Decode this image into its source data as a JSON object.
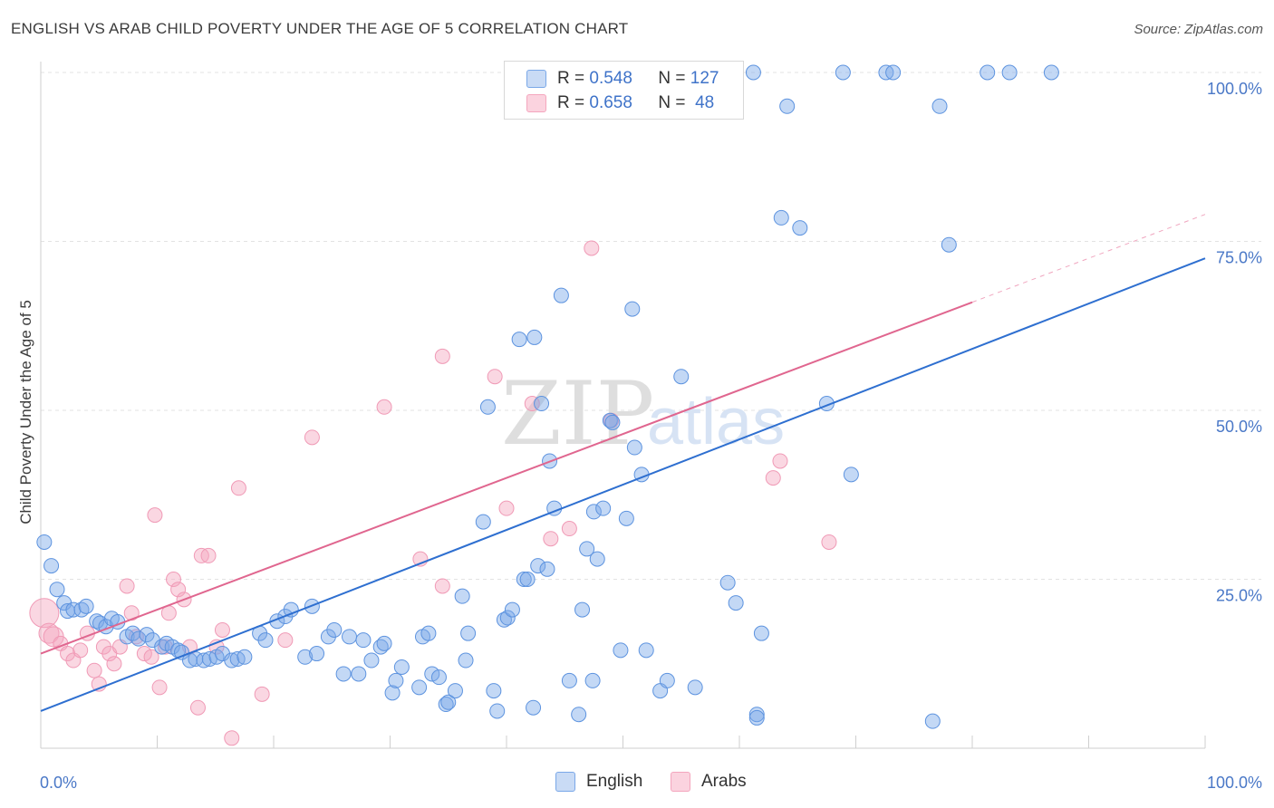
{
  "title": "ENGLISH VS ARAB CHILD POVERTY UNDER THE AGE OF 5 CORRELATION CHART",
  "source": "Source: ZipAtlas.com",
  "watermark": {
    "zip": "ZIP",
    "atlas": "atlas"
  },
  "colors": {
    "english": "#7aa8e8",
    "english_line": "#2e6fd0",
    "arabs": "#f4a6be",
    "arabs_line": "#e0668f",
    "tick": "#4a78c7"
  },
  "legend": {
    "rows": [
      {
        "r_label": "R =",
        "r_value": "0.548",
        "n_label": "N =",
        "n_value": "127"
      },
      {
        "r_label": "R =",
        "r_value": "0.658",
        "n_label": "N =",
        "n_value": "48"
      }
    ]
  },
  "bottom_legend": {
    "english": "English",
    "arabs": "Arabs"
  },
  "chart_data": {
    "type": "scatter",
    "title": "ENGLISH VS ARAB CHILD POVERTY UNDER THE AGE OF 5 CORRELATION CHART",
    "ylabel": "Child Poverty Under the Age of 5",
    "xlabel": "",
    "xlim": [
      0,
      100
    ],
    "ylim": [
      0,
      100
    ],
    "x_tick_labels": [
      "0.0%",
      "100.0%"
    ],
    "y_tick_labels": [
      "25.0%",
      "50.0%",
      "75.0%",
      "100.0%"
    ],
    "grid": true,
    "series": [
      {
        "name": "English",
        "r": 0.548,
        "n": 127,
        "trend": {
          "x": [
            0,
            100
          ],
          "y": [
            5.5,
            72.5
          ]
        },
        "points": [
          [
            0.3,
            30.5
          ],
          [
            0.9,
            27
          ],
          [
            1.4,
            23.5
          ],
          [
            2,
            21.5
          ],
          [
            2.3,
            20.3
          ],
          [
            2.8,
            20.5
          ],
          [
            3.5,
            20.5
          ],
          [
            3.9,
            21
          ],
          [
            4.8,
            18.8
          ],
          [
            5.1,
            18.5
          ],
          [
            5.6,
            18
          ],
          [
            6.1,
            19.2
          ],
          [
            6.6,
            18.7
          ],
          [
            7.4,
            16.5
          ],
          [
            7.9,
            17
          ],
          [
            8.4,
            16.2
          ],
          [
            9.1,
            16.8
          ],
          [
            9.6,
            16
          ],
          [
            10.4,
            15
          ],
          [
            10.8,
            15.5
          ],
          [
            11.3,
            15
          ],
          [
            11.8,
            14.5
          ],
          [
            12.1,
            14.2
          ],
          [
            12.8,
            13
          ],
          [
            13.3,
            13.2
          ],
          [
            14,
            13
          ],
          [
            14.5,
            13.2
          ],
          [
            15.1,
            13.5
          ],
          [
            15.6,
            14
          ],
          [
            16.4,
            13
          ],
          [
            16.9,
            13.2
          ],
          [
            17.5,
            13.5
          ],
          [
            18.8,
            17
          ],
          [
            19.3,
            16
          ],
          [
            20.3,
            18.8
          ],
          [
            21,
            19.5
          ],
          [
            21.5,
            20.5
          ],
          [
            22.7,
            13.5
          ],
          [
            23.3,
            21
          ],
          [
            23.7,
            14
          ],
          [
            24.7,
            16.5
          ],
          [
            25.2,
            17.5
          ],
          [
            26.5,
            16.5
          ],
          [
            26,
            11
          ],
          [
            27.3,
            11
          ],
          [
            27.7,
            16
          ],
          [
            28.4,
            13
          ],
          [
            29.2,
            15
          ],
          [
            29.5,
            15.5
          ],
          [
            30.2,
            8.2
          ],
          [
            30.5,
            10
          ],
          [
            31,
            12
          ],
          [
            32.5,
            9
          ],
          [
            32.8,
            16.5
          ],
          [
            33.3,
            17
          ],
          [
            33.6,
            11
          ],
          [
            34.2,
            10.5
          ],
          [
            34.8,
            6.5
          ],
          [
            35,
            6.8
          ],
          [
            35.6,
            8.5
          ],
          [
            36.2,
            22.5
          ],
          [
            36.5,
            13
          ],
          [
            36.7,
            17
          ],
          [
            38,
            33.5
          ],
          [
            38.4,
            50.5
          ],
          [
            38.9,
            8.5
          ],
          [
            39.2,
            5.5
          ],
          [
            39.8,
            19
          ],
          [
            40.1,
            19.3
          ],
          [
            40.5,
            20.5
          ],
          [
            41.5,
            25
          ],
          [
            41.8,
            25
          ],
          [
            41.1,
            60.5
          ],
          [
            42.3,
            6
          ],
          [
            42.4,
            60.8
          ],
          [
            42.7,
            27
          ],
          [
            43.5,
            26.5
          ],
          [
            43,
            51
          ],
          [
            43.7,
            42.5
          ],
          [
            44.1,
            35.5
          ],
          [
            44.7,
            67
          ],
          [
            45.4,
            10
          ],
          [
            46.2,
            5
          ],
          [
            46.5,
            20.5
          ],
          [
            46.9,
            29.5
          ],
          [
            47.4,
            10
          ],
          [
            47.5,
            35
          ],
          [
            47.8,
            28
          ],
          [
            48.3,
            35.5
          ],
          [
            48.9,
            48.5
          ],
          [
            49.1,
            48.2
          ],
          [
            49.8,
            14.5
          ],
          [
            50.3,
            34
          ],
          [
            50.8,
            65
          ],
          [
            51,
            44.5
          ],
          [
            51.6,
            40.5
          ],
          [
            52,
            14.5
          ],
          [
            53.2,
            8.5
          ],
          [
            53.8,
            10
          ],
          [
            54.7,
            100
          ],
          [
            55,
            55
          ],
          [
            56.2,
            9
          ],
          [
            57.9,
            100
          ],
          [
            59,
            24.5
          ],
          [
            59.7,
            21.5
          ],
          [
            61.2,
            100
          ],
          [
            61.5,
            5
          ],
          [
            61.9,
            17
          ],
          [
            61.5,
            4.5
          ],
          [
            63.6,
            78.5
          ],
          [
            64.1,
            95
          ],
          [
            65.2,
            77
          ],
          [
            67.5,
            51
          ],
          [
            68.9,
            100
          ],
          [
            69.6,
            40.5
          ],
          [
            72.6,
            100
          ],
          [
            73.2,
            100
          ],
          [
            77.2,
            95
          ],
          [
            78,
            74.5
          ],
          [
            76.6,
            4
          ],
          [
            81.3,
            100
          ],
          [
            83.2,
            100
          ],
          [
            86.8,
            100
          ]
        ]
      },
      {
        "name": "Arabs",
        "r": 0.658,
        "n": 48,
        "trend": {
          "x": [
            0,
            80
          ],
          "y": [
            14,
            66
          ]
        },
        "trend_ext": {
          "x": [
            80,
            100
          ],
          "y": [
            66,
            79
          ]
        },
        "points": [
          [
            0.3,
            20
          ],
          [
            0.7,
            17
          ],
          [
            1.1,
            16.5
          ],
          [
            1.7,
            15.5
          ],
          [
            2.3,
            14
          ],
          [
            2.8,
            13
          ],
          [
            3.4,
            14.5
          ],
          [
            4,
            17
          ],
          [
            4.6,
            11.5
          ],
          [
            5,
            9.5
          ],
          [
            5.4,
            15
          ],
          [
            5.9,
            14
          ],
          [
            6.3,
            12.5
          ],
          [
            6.8,
            15
          ],
          [
            7.4,
            24
          ],
          [
            7.8,
            20
          ],
          [
            8.2,
            16.5
          ],
          [
            8.9,
            14
          ],
          [
            9.5,
            13.5
          ],
          [
            9.8,
            34.5
          ],
          [
            10.2,
            9
          ],
          [
            10.7,
            15
          ],
          [
            11,
            20
          ],
          [
            11.4,
            25
          ],
          [
            11.8,
            23.5
          ],
          [
            12.3,
            22
          ],
          [
            12.8,
            15
          ],
          [
            13.5,
            6
          ],
          [
            13.8,
            28.5
          ],
          [
            14.4,
            28.5
          ],
          [
            15.1,
            15
          ],
          [
            15.6,
            17.5
          ],
          [
            16.4,
            1.5
          ],
          [
            17,
            38.5
          ],
          [
            19,
            8
          ],
          [
            21,
            16
          ],
          [
            23.3,
            46
          ],
          [
            29.5,
            50.5
          ],
          [
            32.6,
            28
          ],
          [
            34.5,
            24
          ],
          [
            34.5,
            58
          ],
          [
            39,
            55
          ],
          [
            40,
            35.5
          ],
          [
            42.2,
            51
          ],
          [
            43.8,
            31
          ],
          [
            45.4,
            32.5
          ],
          [
            47.3,
            74
          ],
          [
            49,
            48.5
          ],
          [
            62.9,
            40
          ],
          [
            63.5,
            42.5
          ],
          [
            67.7,
            30.5
          ]
        ]
      }
    ]
  }
}
